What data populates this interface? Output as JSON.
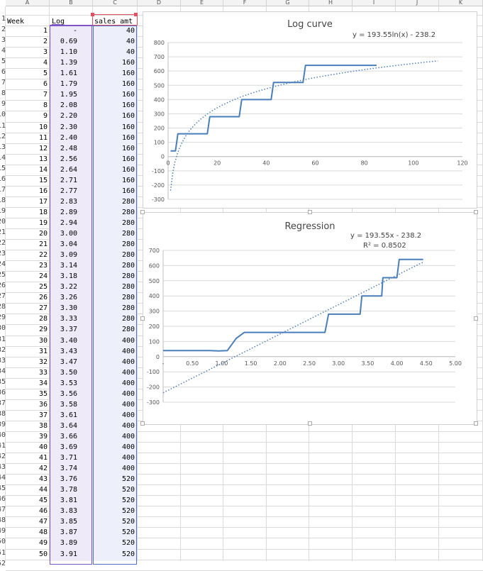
{
  "columns": [
    "A",
    "B",
    "C",
    "D",
    "E",
    "F",
    "G",
    "H",
    "I",
    "J",
    "K"
  ],
  "row_numbers": [
    "1",
    "2",
    "3",
    "4",
    "5",
    "6",
    "7",
    "8",
    "9",
    "10",
    "11",
    "12",
    "13",
    "14",
    "15",
    "16",
    "17",
    "18",
    "19",
    "20",
    "21",
    "22",
    "23",
    "24",
    "25",
    "26",
    "27",
    "28",
    "29",
    "30",
    "31",
    "32",
    "33",
    "34",
    "35",
    "36",
    "37",
    "38",
    "39",
    "40",
    "41",
    "42",
    "43",
    "44",
    "45",
    "46",
    "47",
    "48",
    "49",
    "50",
    "51",
    "52"
  ],
  "headers": {
    "week": "Week",
    "log": "Log",
    "sales": "sales amt"
  },
  "rows": [
    [
      "1",
      "-",
      "40"
    ],
    [
      "2",
      "0.69",
      "40"
    ],
    [
      "3",
      "1.10",
      "40"
    ],
    [
      "4",
      "1.39",
      "160"
    ],
    [
      "5",
      "1.61",
      "160"
    ],
    [
      "6",
      "1.79",
      "160"
    ],
    [
      "7",
      "1.95",
      "160"
    ],
    [
      "8",
      "2.08",
      "160"
    ],
    [
      "9",
      "2.20",
      "160"
    ],
    [
      "10",
      "2.30",
      "160"
    ],
    [
      "11",
      "2.40",
      "160"
    ],
    [
      "12",
      "2.48",
      "160"
    ],
    [
      "13",
      "2.56",
      "160"
    ],
    [
      "14",
      "2.64",
      "160"
    ],
    [
      "15",
      "2.71",
      "160"
    ],
    [
      "16",
      "2.77",
      "160"
    ],
    [
      "17",
      "2.83",
      "280"
    ],
    [
      "18",
      "2.89",
      "280"
    ],
    [
      "19",
      "2.94",
      "280"
    ],
    [
      "20",
      "3.00",
      "280"
    ],
    [
      "21",
      "3.04",
      "280"
    ],
    [
      "22",
      "3.09",
      "280"
    ],
    [
      "23",
      "3.14",
      "280"
    ],
    [
      "24",
      "3.18",
      "280"
    ],
    [
      "25",
      "3.22",
      "280"
    ],
    [
      "26",
      "3.26",
      "280"
    ],
    [
      "27",
      "3.30",
      "280"
    ],
    [
      "28",
      "3.33",
      "280"
    ],
    [
      "29",
      "3.37",
      "280"
    ],
    [
      "30",
      "3.40",
      "400"
    ],
    [
      "31",
      "3.43",
      "400"
    ],
    [
      "32",
      "3.47",
      "400"
    ],
    [
      "33",
      "3.50",
      "400"
    ],
    [
      "34",
      "3.53",
      "400"
    ],
    [
      "35",
      "3.56",
      "400"
    ],
    [
      "36",
      "3.58",
      "400"
    ],
    [
      "37",
      "3.61",
      "400"
    ],
    [
      "38",
      "3.64",
      "400"
    ],
    [
      "39",
      "3.66",
      "400"
    ],
    [
      "40",
      "3.69",
      "400"
    ],
    [
      "41",
      "3.71",
      "400"
    ],
    [
      "42",
      "3.74",
      "400"
    ],
    [
      "43",
      "3.76",
      "520"
    ],
    [
      "44",
      "3.78",
      "520"
    ],
    [
      "45",
      "3.81",
      "520"
    ],
    [
      "46",
      "3.83",
      "520"
    ],
    [
      "47",
      "3.85",
      "520"
    ],
    [
      "48",
      "3.87",
      "520"
    ],
    [
      "49",
      "3.89",
      "520"
    ],
    [
      "50",
      "3.91",
      "520"
    ]
  ],
  "chart_data": [
    {
      "type": "line",
      "title": "Log curve",
      "equation": "y = 193.55ln(x) - 238.2",
      "x_ticks": [
        "0",
        "20",
        "40",
        "60",
        "80",
        "100",
        "120"
      ],
      "y_ticks": [
        "800",
        "700",
        "600",
        "500",
        "400",
        "300",
        "200",
        "100",
        "0",
        "-100",
        "-200",
        "-300"
      ],
      "xlim": [
        0,
        120
      ],
      "ylim": [
        -300,
        800
      ],
      "series_color": "#4a7ebb",
      "steps": [
        [
          1,
          40
        ],
        [
          4,
          160
        ],
        [
          17,
          280
        ],
        [
          30,
          400
        ],
        [
          43,
          520
        ],
        [
          56,
          640
        ]
      ],
      "x_end": 85,
      "trendline": {
        "a": 193.55,
        "b": -238.2,
        "x_start": 1,
        "x_end": 110
      }
    },
    {
      "type": "line",
      "title": "Regression",
      "equation": "y = 193.55x - 238.2",
      "r_squared": "R² = 0.8502",
      "x_ticks": [
        "-",
        "0.50",
        "1.00",
        "1.50",
        "2.00",
        "2.50",
        "3.00",
        "3.50",
        "4.00",
        "4.50",
        "5.00"
      ],
      "y_ticks": [
        "700",
        "600",
        "500",
        "400",
        "300",
        "200",
        "100",
        "0",
        "-100",
        "-200",
        "-300"
      ],
      "xlim": [
        0,
        5
      ],
      "ylim": [
        -300,
        700
      ],
      "series_color": "#4a7ebb",
      "points": [
        [
          0,
          40
        ],
        [
          0.69,
          40
        ],
        [
          0.8,
          40
        ],
        [
          0.95,
          38
        ],
        [
          1.1,
          40
        ],
        [
          1.25,
          120
        ],
        [
          1.39,
          160
        ],
        [
          1.61,
          160
        ],
        [
          2.0,
          160
        ],
        [
          2.5,
          160
        ],
        [
          2.77,
          160
        ],
        [
          2.83,
          280
        ],
        [
          3.0,
          280
        ],
        [
          3.37,
          280
        ],
        [
          3.4,
          400
        ],
        [
          3.74,
          400
        ],
        [
          3.76,
          520
        ],
        [
          4.0,
          520
        ],
        [
          4.04,
          640
        ],
        [
          4.45,
          640
        ]
      ],
      "trendline": {
        "a": 193.55,
        "b": -238.2,
        "x_start": 0,
        "x_end": 4.45
      }
    }
  ]
}
